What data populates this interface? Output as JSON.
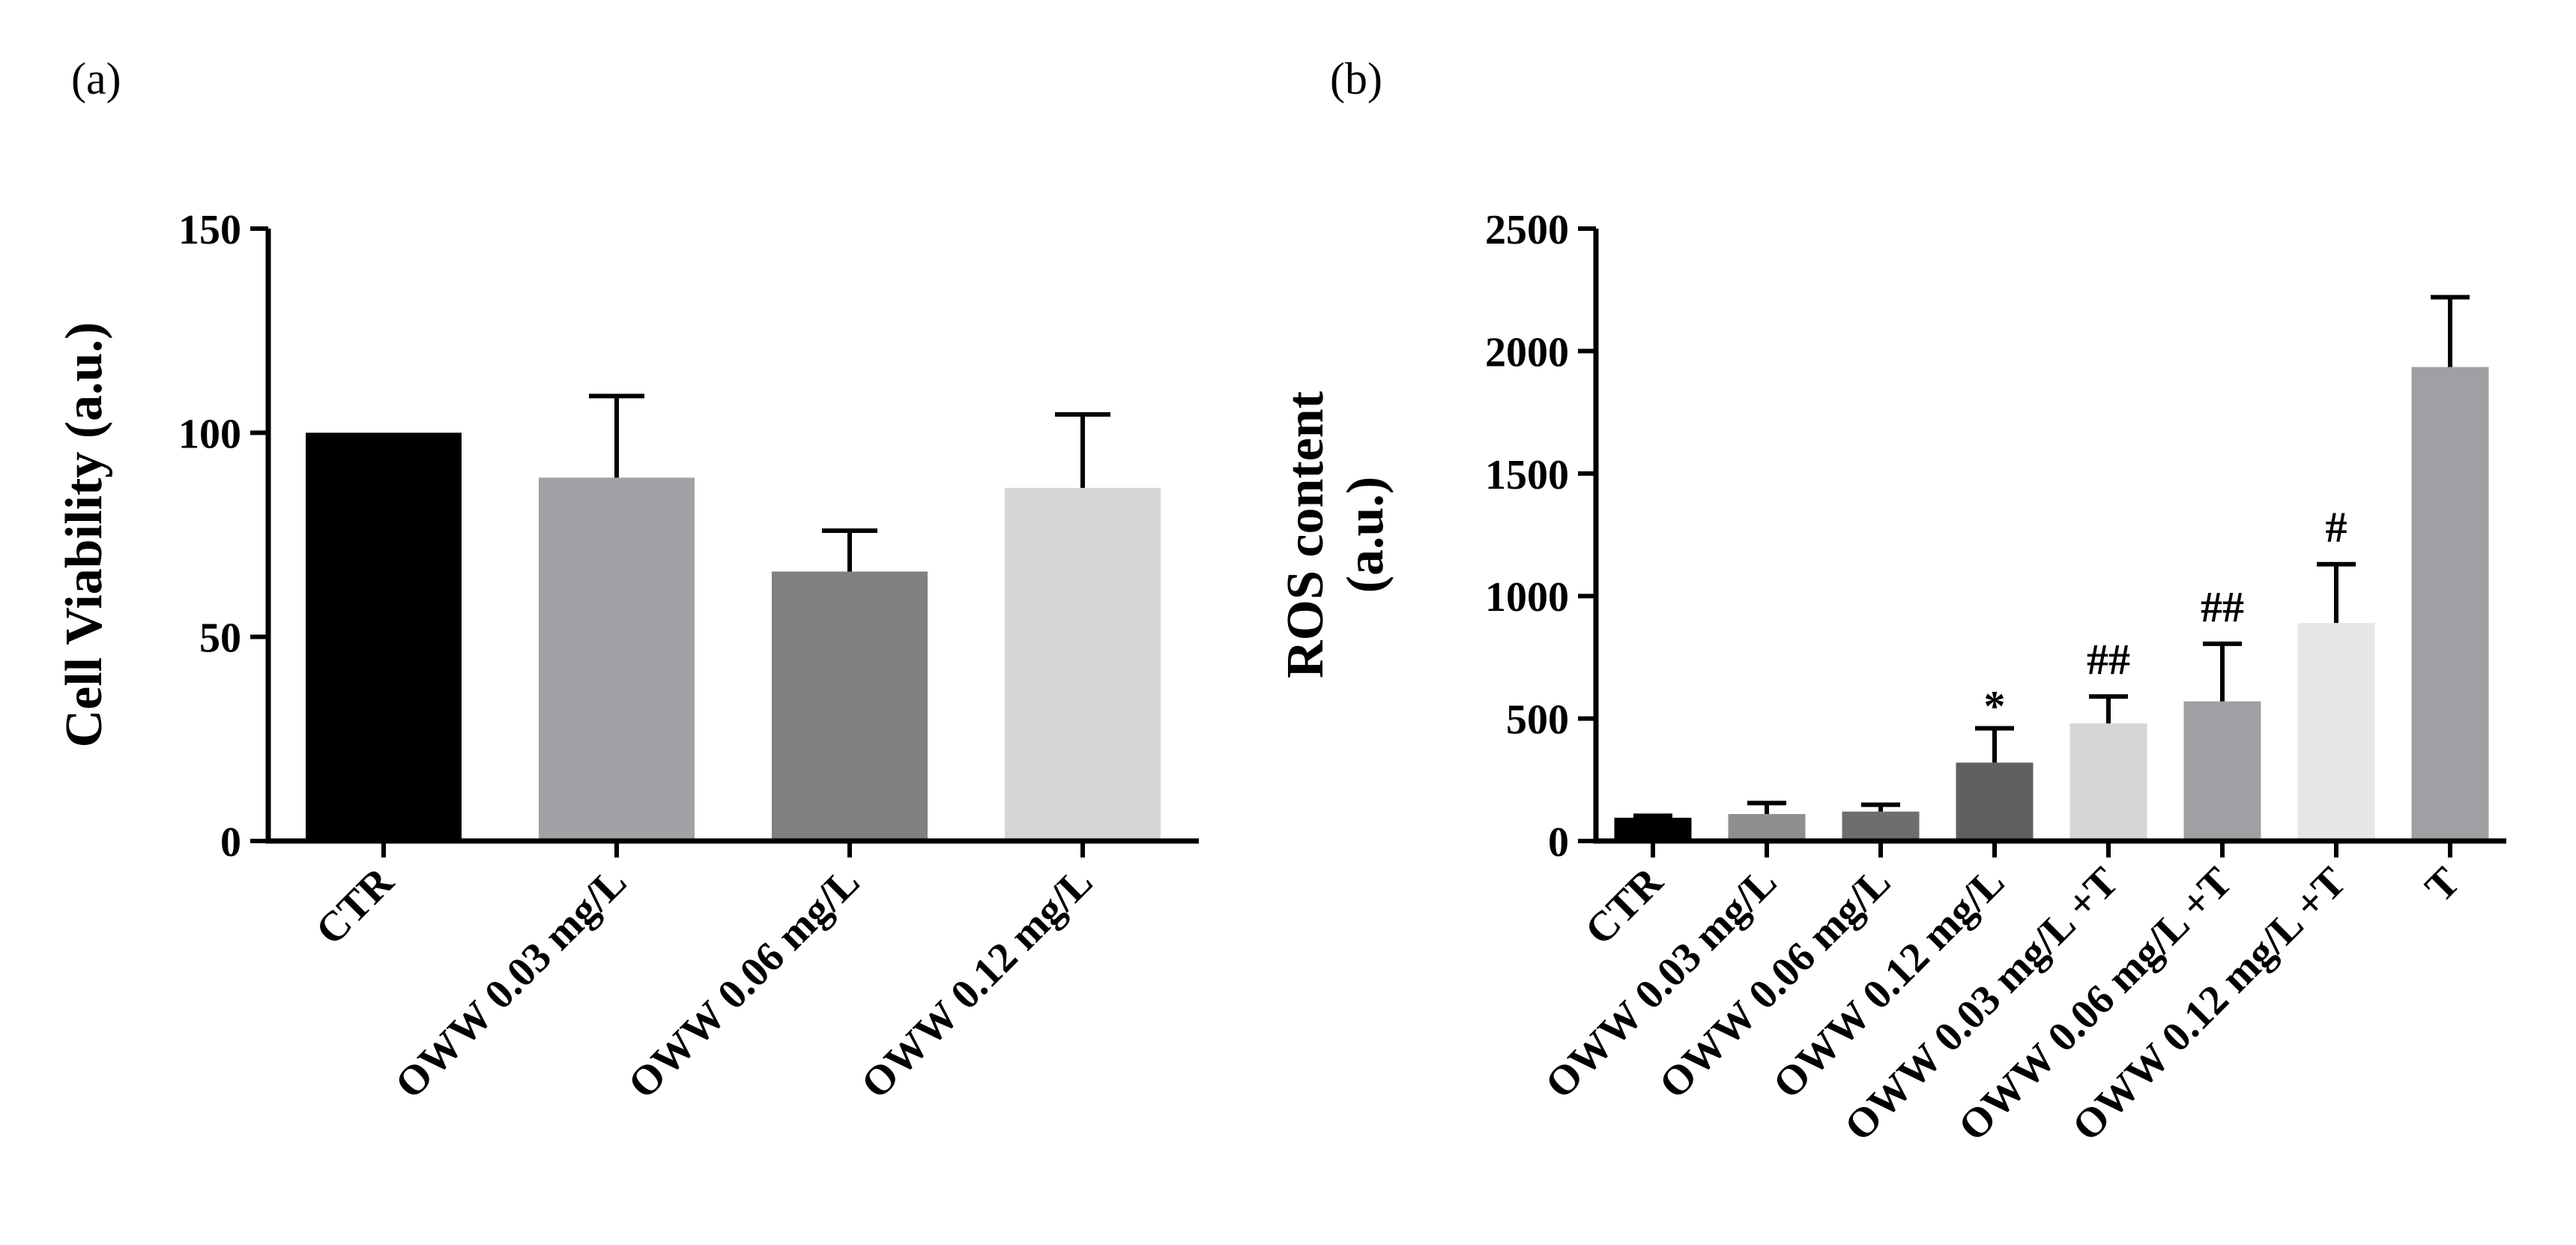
{
  "chart_data": [
    {
      "panel": "(a)",
      "type": "bar",
      "ylabel_lines": [
        "Cell Viability (a.u.)"
      ],
      "xlabel": "",
      "ylim": [
        0,
        150
      ],
      "yticks": [
        0,
        50,
        100,
        150
      ],
      "categories": [
        "CTR",
        "OWW  0.03 mg/L",
        "OWW 0.06 mg/L",
        "OWW 0.12 mg/L"
      ],
      "values": [
        100,
        89,
        66,
        86.5
      ],
      "errors": [
        0,
        20,
        10,
        18
      ],
      "colors": [
        "#000000",
        "#a2a2a6",
        "#808080",
        "#d6d6d6"
      ],
      "annotations": [
        "",
        "",
        "",
        ""
      ]
    },
    {
      "panel": "(b)",
      "type": "bar",
      "ylabel_lines": [
        "ROS content",
        "(a.u.)"
      ],
      "xlabel": "",
      "ylim": [
        0,
        2500
      ],
      "yticks": [
        0,
        500,
        1000,
        1500,
        2000,
        2500
      ],
      "categories": [
        "CTR",
        "OWW 0.03 mg/L",
        "OWW 0.06 mg/L",
        "OWW 0.12 mg/L",
        "OWW 0.03 mg/L +T",
        "OWW 0.06 mg/L +T",
        "OWW 0.12 mg/L +T",
        "T"
      ],
      "values": [
        95,
        110,
        120,
        320,
        480,
        570,
        890,
        1935
      ],
      "errors": [
        8,
        45,
        28,
        140,
        110,
        235,
        240,
        285
      ],
      "colors": [
        "#000000",
        "#8f8f8f",
        "#6e6e6e",
        "#606060",
        "#d6d6d6",
        "#a0a0a4",
        "#e6e6e6",
        "#a0a0a4"
      ],
      "annotations": [
        "",
        "",
        "",
        "*",
        "##",
        "##",
        "#",
        ""
      ]
    }
  ]
}
